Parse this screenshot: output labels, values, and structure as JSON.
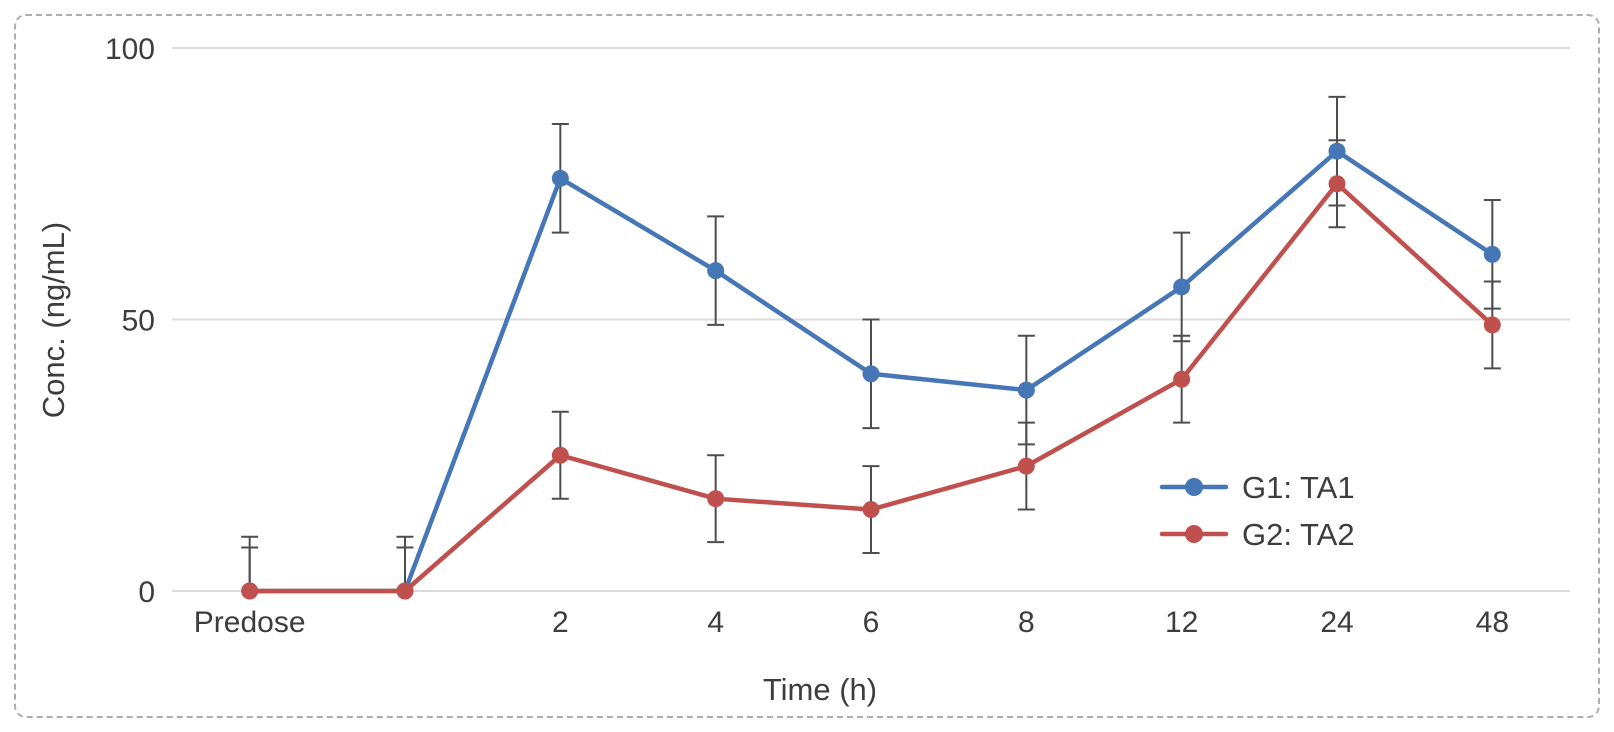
{
  "figure": {
    "background": "#ffffff",
    "border_color": "#adadad"
  },
  "chart_data": {
    "type": "line",
    "categories": [
      "Predose",
      "",
      "2",
      "4",
      "6",
      "8",
      "12",
      "24",
      "48"
    ],
    "series": [
      {
        "name": "G1: TA1",
        "color": "#4576b5",
        "values": [
          0,
          0,
          76,
          59,
          40,
          37,
          56,
          81,
          62
        ],
        "errors": [
          10,
          10,
          10,
          10,
          10,
          10,
          10,
          10,
          10
        ]
      },
      {
        "name": "G2: TA2",
        "color": "#c0504d",
        "values": [
          0,
          0,
          25,
          17,
          15,
          23,
          39,
          75,
          49
        ],
        "errors": [
          8,
          8,
          8,
          8,
          8,
          8,
          8,
          8,
          8
        ]
      }
    ],
    "title": "",
    "xlabel": "Time (h)",
    "ylabel": "Conc. (ng/mL)",
    "yticks": [
      0,
      50,
      100
    ],
    "ylim": [
      0,
      100
    ],
    "grid": "horizontal",
    "legend_position": "inside-right",
    "marker": "circle",
    "error_bars": true,
    "error_bar_color": "#4d4d4d",
    "gridline_color": "#dcdcdc",
    "text_color": "#3d3d3d"
  }
}
